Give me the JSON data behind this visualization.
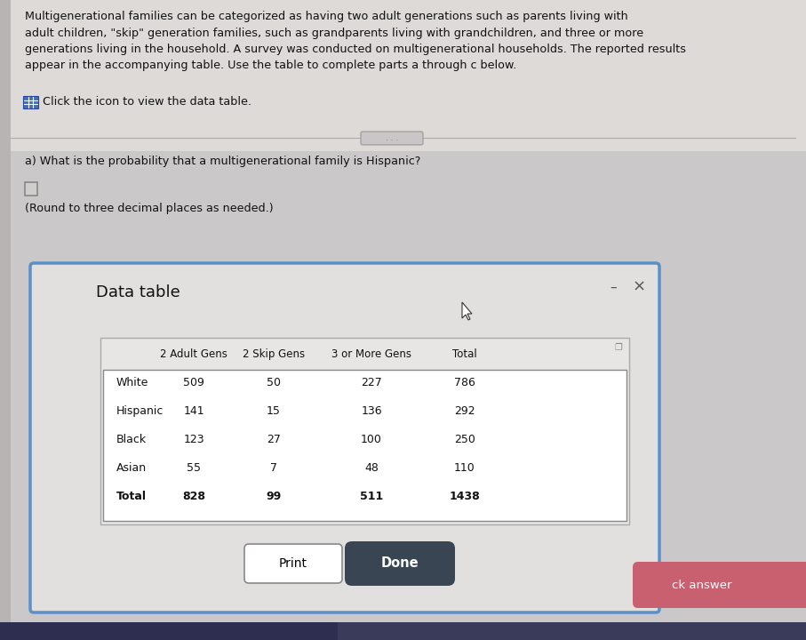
{
  "title_text": "Multigenerational families can be categorized as having two adult generations such as parents living with\nadult children, \"skip\" generation families, such as grandparents living with grandchildren, and three or more\ngenerations living in the household. A survey was conducted on multigenerational households. The reported results\nappear in the accompanying table. Use the table to complete parts a through c below.",
  "click_icon_text": "Click the icon to view the data table.",
  "question_a": "a) What is the probability that a multigenerational family is Hispanic?",
  "round_note": "(Round to three decimal places as needed.)",
  "data_table_title": "Data table",
  "col_headers": [
    "2 Adult Gens",
    "2 Skip Gens",
    "3 or More Gens",
    "Total"
  ],
  "row_labels": [
    "White",
    "Hispanic",
    "Black",
    "Asian",
    "Total"
  ],
  "table_data": [
    [
      509,
      50,
      227,
      786
    ],
    [
      141,
      15,
      136,
      292
    ],
    [
      123,
      27,
      100,
      250
    ],
    [
      55,
      7,
      48,
      110
    ],
    [
      828,
      99,
      511,
      1438
    ]
  ],
  "bg_top": "#dddad8",
  "bg_bottom": "#cac8c8",
  "dialog_bg": "#e2dfdf",
  "dialog_border": "#5b8fc9",
  "table_bg": "#ffffff",
  "print_btn_color": "#ffffff",
  "done_btn_color": "#3a4554",
  "done_btn_text_color": "#ffffff",
  "print_btn_text_color": "#000000",
  "icon_color": "#4a6fa5",
  "minus_x_color": "#555555",
  "left_strip_color": "#b8b4b4",
  "ck_answer_color": "#c96070",
  "bottom_bar_color": "#3a3a5a"
}
